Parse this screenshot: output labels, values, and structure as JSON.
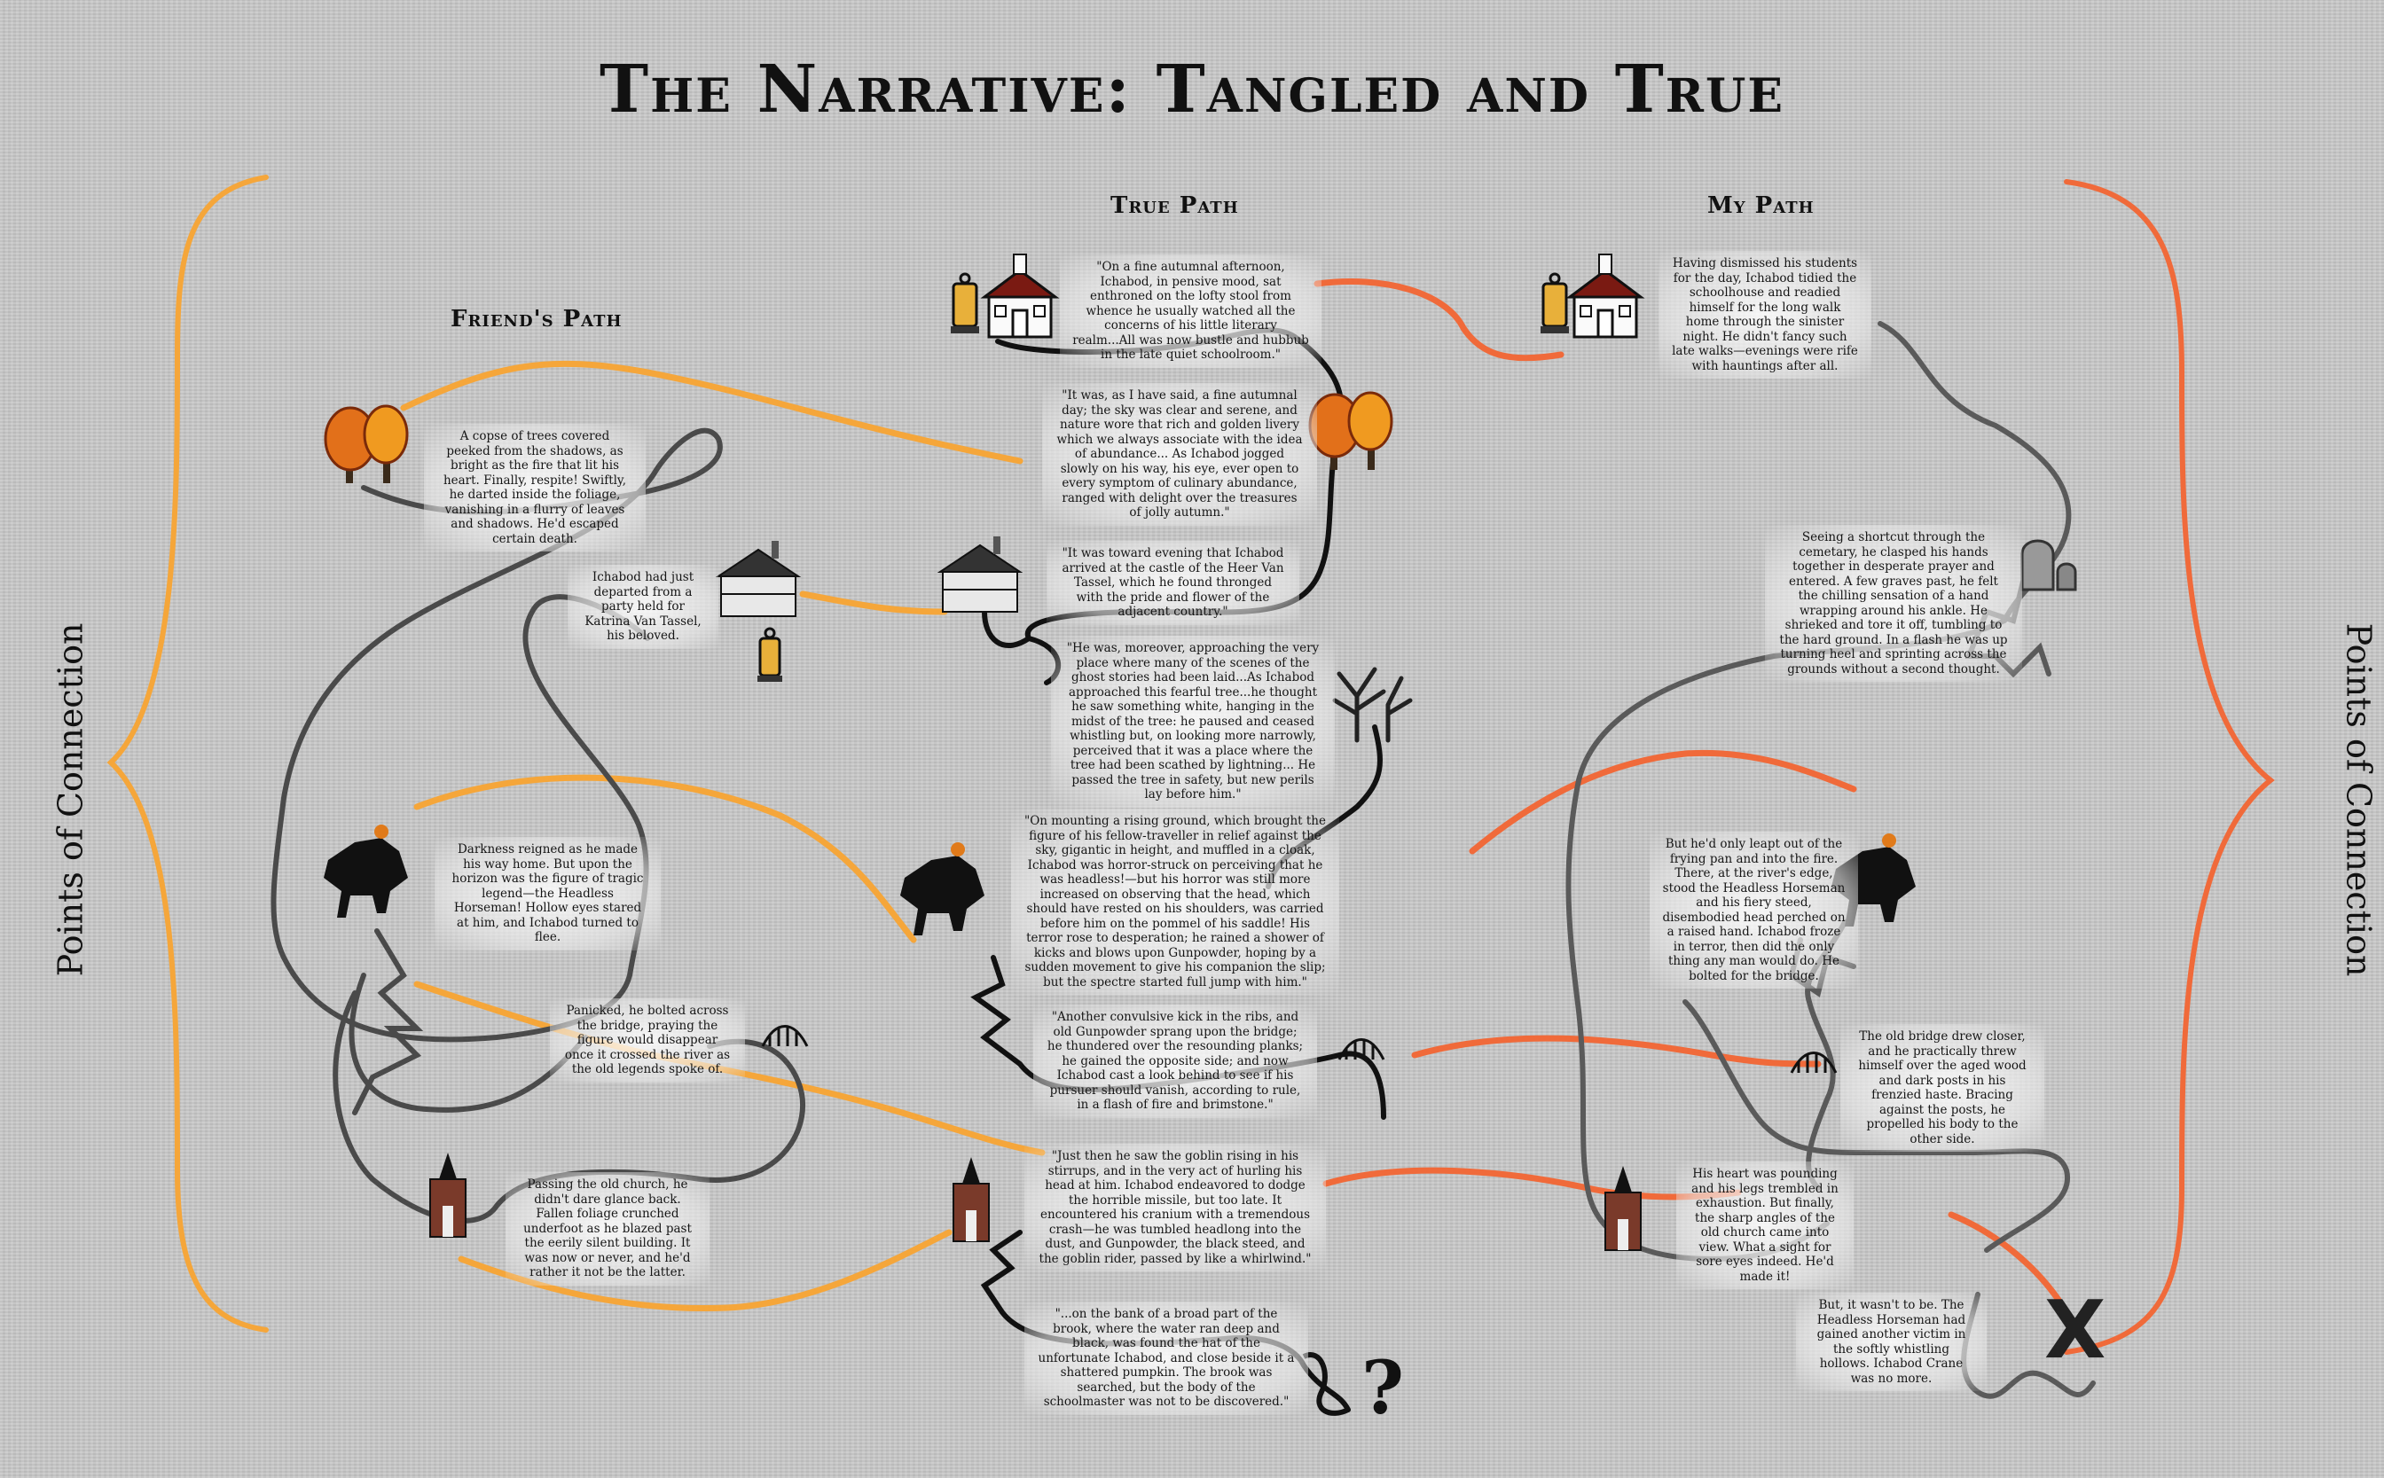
{
  "title": "The Narrative: Tangled and True",
  "headings": {
    "friend": "Friend's Path",
    "true_path": "True Path",
    "my_path": "My Path"
  },
  "side_labels": {
    "left": "Points of Connection",
    "right": "Points of Connection"
  },
  "colors": {
    "friend_path": "#f5a63a",
    "my_path": "#f06a3a",
    "true_path": "#111111",
    "grey_path": "#5a5a5a",
    "background": "#c8c8c8"
  },
  "friend_notes": [
    "A copse of trees covered peeked from the shadows, as bright as the fire that lit his heart. Finally, respite! Swiftly, he darted inside the foliage, vanishing in a flurry of leaves and shadows. He'd escaped certain death.",
    "Ichabod had just departed from a party held for Katrina Van Tassel, his beloved.",
    "Darkness reigned as he made his way home. But upon the horizon was the figure of tragic legend—the Headless Horseman! Hollow eyes stared at him, and Ichabod turned to flee.",
    "Panicked, he bolted across the bridge, praying the figure would disappear once it crossed the river as the old legends spoke of.",
    "Passing the old church, he didn't dare glance back. Fallen foliage crunched underfoot as he blazed past the eerily silent building. It was now or never, and he'd rather it not be the latter."
  ],
  "true_notes": [
    "\"On a fine autumnal afternoon, Ichabod, in pensive mood, sat enthroned on the lofty stool from whence he usually watched all the concerns of his little literary realm...All was now bustle and hubbub in the late quiet schoolroom.\"",
    "\"It was, as I have said, a fine autumnal day; the sky was clear and serene, and nature wore that rich and golden livery which we always associate with the idea of abundance... As Ichabod jogged slowly on his way, his eye, ever open to every symptom of culinary abundance, ranged with delight over the treasures of jolly autumn.\"",
    "\"It was toward evening that Ichabod arrived at the castle of the Heer Van Tassel, which he found thronged with the pride and flower of the adjacent country.\"",
    "\"He was, moreover, approaching the very place where many of the scenes of the ghost stories had been laid...As Ichabod approached this fearful tree...he thought he saw something white, hanging in the midst of the tree: he paused and ceased whistling but, on looking more narrowly, perceived that it was a place where the tree had been scathed by lightning... He passed the tree in safety, but new perils lay before him.\"",
    "\"On mounting a rising ground, which brought the figure of his fellow-traveller in relief against the sky, gigantic in height, and muffled in a cloak, Ichabod was horror-struck on perceiving that he was headless!—but his horror was still more increased on observing that the head, which should have rested on his shoulders, was carried before him on the pommel of his saddle! His terror rose to desperation; he rained a shower of kicks and blows upon Gunpowder, hoping by a sudden movement to give his companion the slip; but the spectre started full jump with him.\"",
    "\"Another convulsive kick in the ribs, and old Gunpowder sprang upon the bridge; he thundered over the resounding planks; he gained the opposite side; and now Ichabod cast a look behind to see if his pursuer should vanish, according to rule, in a flash of fire and brimstone.\"",
    "\"Just then he saw the goblin rising in his stirrups, and in the very act of hurling his head at him. Ichabod endeavored to dodge the horrible missile, but too late. It encountered his cranium with a tremendous crash—he was tumbled headlong into the dust, and Gunpowder, the black steed, and the goblin rider, passed by like a whirlwind.\"",
    "\"...on the bank of a broad part of the brook, where the water ran deep and black, was found the hat of the unfortunate Ichabod, and close beside it a shattered pumpkin. The brook was searched, but the body of the schoolmaster was not to be discovered.\""
  ],
  "my_notes": [
    "Having dismissed his students for the day, Ichabod tidied the schoolhouse and readied himself for the long walk home through the sinister night. He didn't fancy such late walks—evenings were rife with hauntings after all.",
    "Seeing a shortcut through the cemetary, he clasped his hands together in desperate prayer and entered. A few graves past, he felt the chilling sensation of a hand wrapping around his ankle. He shrieked and tore it off, tumbling to the hard ground. In a flash he was up turning heel and sprinting across the grounds without a second thought.",
    "But he'd only leapt out of the frying pan and into the fire. There, at the river's edge, stood the Headless Horseman and his fiery steed, disembodied head perched on a raised hand. Ichabod froze in terror, then did the only thing any man would do. He bolted for the bridge.",
    "The old bridge drew closer, and he practically threw himself over the aged wood and dark posts in his frenzied haste. Bracing against the posts, he propelled his body to the other side.",
    "His heart was pounding and his legs trembled in exhaustion. But finally, the sharp angles of the old church came into view. What a sight for sore eyes indeed. He'd made it!",
    "But, it wasn't to be. The Headless Horseman had gained another victim in the softly whistling hollows. Ichabod Crane was no more."
  ],
  "end_marks": {
    "question": "?",
    "cross": "X"
  },
  "icons": {
    "schoolhouse": "schoolhouse-icon",
    "lantern": "lantern-icon",
    "trees": "autumn-trees-icon",
    "mansion": "mansion-icon",
    "dead_tree": "dead-tree-icon",
    "horseman": "headless-horseman-icon",
    "bridge": "bridge-icon",
    "church": "church-icon",
    "graves": "gravestones-icon"
  }
}
